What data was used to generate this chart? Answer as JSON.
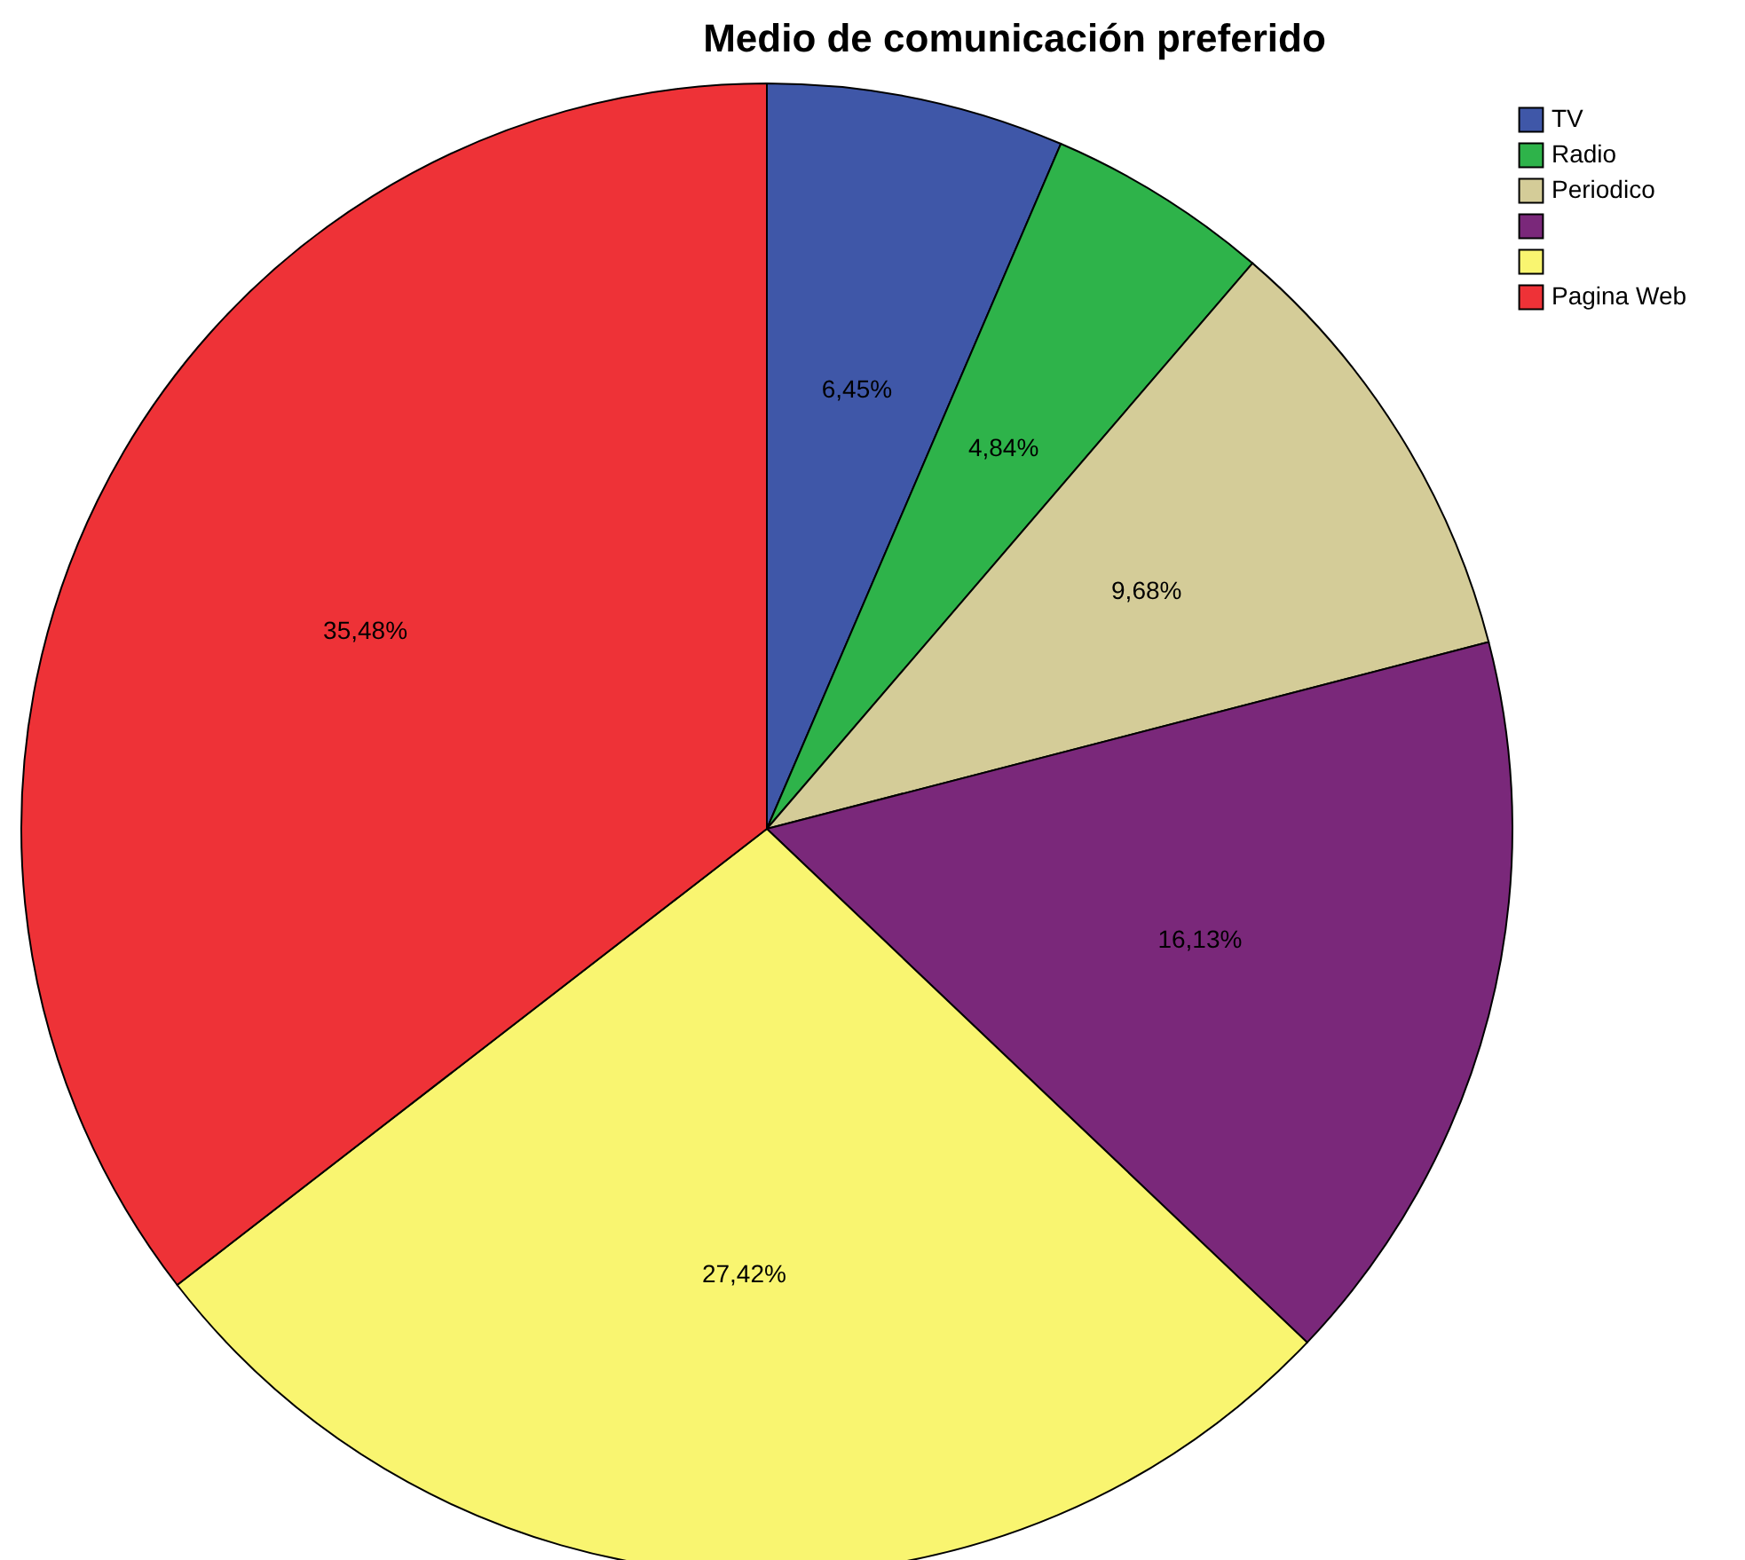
{
  "chart_data": {
    "type": "pie",
    "title": "Medio de comunicación preferido",
    "categories": [
      "TV",
      "Radio",
      "Periodico",
      null,
      null,
      "Pagina Web"
    ],
    "values": [
      6.45,
      4.84,
      9.68,
      16.13,
      27.42,
      35.48
    ],
    "value_labels": [
      "6,45%",
      "4,84%",
      "9,68%",
      "16,13%",
      "27,42%",
      "35,48%"
    ],
    "colors": [
      "#3f57a8",
      "#2eb34a",
      "#d4cc98",
      "#7a287a",
      "#f9f570",
      "#ee3237"
    ],
    "legend": "top right"
  }
}
